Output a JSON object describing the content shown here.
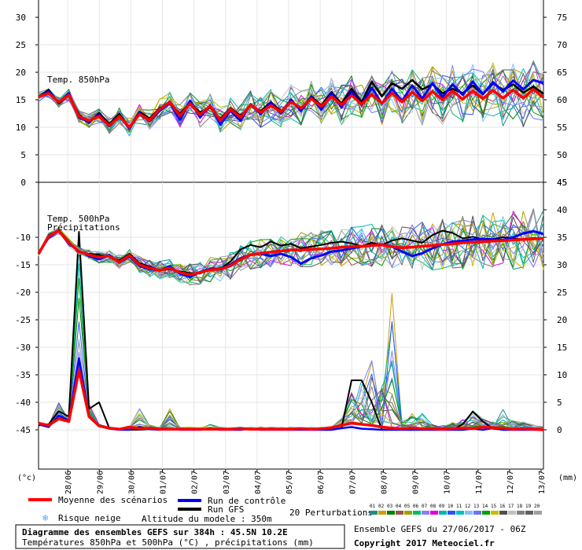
{
  "chart_data": {
    "type": "line",
    "dates": [
      "28/06",
      "29/06",
      "30/06",
      "01/07",
      "02/07",
      "03/07",
      "04/07",
      "05/07",
      "06/07",
      "07/07",
      "08/07",
      "09/07",
      "10/07",
      "11/07",
      "12/07",
      "13/07"
    ],
    "top_panel": {
      "label": "Temp. 850hPa",
      "y_left_ticks": [
        "30",
        "25",
        "20",
        "15",
        "10",
        "5",
        "0"
      ],
      "y_right_ticks": [
        "75",
        "70",
        "65",
        "60",
        "55",
        "50",
        "45"
      ],
      "series": {
        "mean": [
          15.5,
          16.2,
          14.6,
          15.9,
          12.0,
          11.2,
          12.0,
          10.3,
          12.0,
          10.0,
          12.4,
          11.3,
          13.3,
          14.6,
          12.1,
          14.3,
          12.3,
          13.9,
          11.2,
          13.3,
          11.8,
          14.1,
          12.7,
          14.0,
          12.8,
          14.6,
          13.5,
          15.2,
          13.8,
          15.6,
          14.1,
          15.8,
          14.2,
          16.0,
          14.4,
          16.2,
          14.6,
          16.4,
          14.8,
          16.5,
          15.0,
          16.6,
          15.1,
          16.6,
          15.2,
          16.7,
          15.3,
          16.8,
          15.3,
          16.9,
          15.4
        ],
        "control": [
          15.5,
          16.5,
          14.5,
          16.2,
          11.8,
          11.0,
          12.3,
          10.2,
          12.0,
          9.8,
          12.6,
          11.1,
          13.0,
          14.5,
          11.4,
          14.8,
          11.8,
          14.0,
          10.5,
          13.0,
          11.2,
          14.2,
          12.4,
          14.5,
          12.5,
          15.0,
          13.0,
          15.5,
          13.2,
          16.2,
          13.6,
          16.5,
          14.0,
          17.2,
          14.3,
          17.0,
          14.8,
          17.6,
          15.2,
          18.0,
          15.5,
          17.8,
          15.9,
          18.3,
          16.0,
          18.2,
          16.5,
          18.5,
          16.9,
          18.6,
          18.0
        ],
        "gfs": [
          15.5,
          16.8,
          14.3,
          16.0,
          12.3,
          10.8,
          12.6,
          10.6,
          12.4,
          9.9,
          12.8,
          11.6,
          13.5,
          14.3,
          12.5,
          14.4,
          12.7,
          13.6,
          11.5,
          13.5,
          12.1,
          14.0,
          12.9,
          14.6,
          12.9,
          14.8,
          13.2,
          15.6,
          14.0,
          16.4,
          14.3,
          17.0,
          14.6,
          18.3,
          15.6,
          18.0,
          17.0,
          18.6,
          16.9,
          17.8,
          16.2,
          17.0,
          16.2,
          17.6,
          16.0,
          18.0,
          16.8,
          17.8,
          16.3,
          17.4,
          16.1
        ]
      }
    },
    "bottom_panel": {
      "labels": [
        "Temp. 500hPa",
        "Précipitations"
      ],
      "y_left_ticks": [
        "-10",
        "-15",
        "-20",
        "-25",
        "-30",
        "-35",
        "-40",
        "-45"
      ],
      "y_right_ticks": [
        "45",
        "40",
        "35",
        "30",
        "25",
        "20",
        "15",
        "10",
        "5",
        "0"
      ],
      "temp500": {
        "mean": [
          -13.0,
          -9.8,
          -8.8,
          -11.0,
          -12.6,
          -13.2,
          -13.6,
          -13.4,
          -14.5,
          -13.3,
          -15.0,
          -15.6,
          -16.0,
          -15.6,
          -16.4,
          -16.8,
          -16.4,
          -15.9,
          -15.8,
          -15.2,
          -14.0,
          -13.2,
          -12.9,
          -12.7,
          -12.5,
          -12.3,
          -12.3,
          -12.2,
          -12.1,
          -12.0,
          -11.8,
          -11.7,
          -11.6,
          -11.5,
          -11.4,
          -11.7,
          -11.9,
          -11.8,
          -11.6,
          -11.5,
          -11.3,
          -11.2,
          -11.0,
          -10.9,
          -10.8,
          -10.7,
          -10.6,
          -10.5,
          -10.4,
          -10.3,
          -10.2
        ],
        "control": [
          -13.0,
          -10.0,
          -8.8,
          -11.2,
          -12.5,
          -13.4,
          -14.0,
          -13.2,
          -14.6,
          -13.5,
          -15.2,
          -15.8,
          -16.0,
          -15.3,
          -16.6,
          -17.2,
          -16.3,
          -15.8,
          -15.7,
          -15.0,
          -13.8,
          -13.2,
          -13.0,
          -13.4,
          -13.0,
          -13.6,
          -14.8,
          -13.8,
          -13.3,
          -12.6,
          -12.4,
          -12.0,
          -11.7,
          -11.4,
          -11.3,
          -11.7,
          -12.6,
          -13.4,
          -12.9,
          -12.0,
          -11.3,
          -10.8,
          -10.6,
          -10.4,
          -10.3,
          -10.4,
          -10.5,
          -10.0,
          -9.3,
          -8.9,
          -9.4
        ],
        "gfs": [
          -13.0,
          -9.6,
          -8.8,
          -10.8,
          -12.7,
          -13.0,
          -13.2,
          -13.5,
          -14.2,
          -13.0,
          -14.7,
          -15.3,
          -16.1,
          -15.8,
          -16.2,
          -16.5,
          -16.6,
          -15.6,
          -15.7,
          -14.4,
          -12.2,
          -11.4,
          -11.8,
          -10.8,
          -11.5,
          -11.2,
          -12.0,
          -11.7,
          -11.4,
          -11.0,
          -10.8,
          -11.1,
          -11.6,
          -11.0,
          -11.4,
          -10.6,
          -10.2,
          -10.6,
          -11.0,
          -9.6,
          -8.8,
          -9.2,
          -10.2,
          -9.9,
          -10.4,
          -10.3,
          -10.0,
          -10.2,
          -10.4,
          -10.1,
          -10.2
        ]
      },
      "precip_mm": {
        "mean": [
          1.2,
          0.8,
          2.0,
          1.5,
          10.8,
          2.4,
          0.7,
          0.3,
          0.1,
          0.5,
          0.2,
          0.3,
          0.1,
          0.1,
          0.1,
          0.1,
          0.1,
          0.1,
          0.1,
          0.1,
          0.2,
          0.1,
          0.1,
          0.1,
          0.1,
          0.1,
          0.2,
          0.1,
          0.2,
          0.4,
          0.8,
          1.2,
          1.0,
          0.8,
          0.5,
          0.3,
          0.2,
          0.3,
          0.2,
          0.2,
          0.1,
          0.2,
          0.3,
          0.2,
          0.5,
          0.4,
          0.3,
          0.1,
          0.2,
          0.1,
          0.0
        ],
        "control": [
          1.0,
          0.5,
          2.6,
          1.7,
          13.0,
          2.4,
          0.8,
          0.2,
          0.0,
          0.0,
          0.5,
          0.1,
          0.0,
          0.2,
          0.0,
          0.0,
          0.0,
          0.1,
          0.0,
          0.0,
          0.0,
          0.2,
          0.0,
          0.0,
          0.0,
          0.0,
          0.0,
          0.0,
          0.0,
          0.0,
          0.3,
          0.5,
          0.2,
          0.1,
          0.0,
          0.0,
          0.0,
          0.0,
          0.0,
          0.0,
          0.0,
          0.0,
          0.0,
          0.2,
          0.0,
          0.3,
          0.0,
          0.0,
          0.0,
          0.0,
          0.0
        ],
        "gfs": [
          0.8,
          1.0,
          3.4,
          2.4,
          36.0,
          3.8,
          5.0,
          0.3,
          0.1,
          0.0,
          0.0,
          0.1,
          0.2,
          0.0,
          0.1,
          0.0,
          0.1,
          0.3,
          0.0,
          0.0,
          0.1,
          0.1,
          0.2,
          0.0,
          0.0,
          0.1,
          0.0,
          0.0,
          0.0,
          0.0,
          0.3,
          9.0,
          9.0,
          5.0,
          0.0,
          0.0,
          0.0,
          0.0,
          0.0,
          0.0,
          0.0,
          0.0,
          1.0,
          3.3,
          1.5,
          0.2,
          0.0,
          0.0,
          0.0,
          0.0,
          0.0
        ],
        "peak_max": [
          1.2,
          0.8,
          5.0,
          2.0,
          35.0,
          5.0,
          1.0,
          0.5,
          0.3,
          0.5,
          4.0,
          1.0,
          0.5,
          4.0,
          0.5,
          0.5,
          0.5,
          1.0,
          0.5,
          0.5,
          0.5,
          0.5,
          0.5,
          0.5,
          0.5,
          0.5,
          0.5,
          0.5,
          0.5,
          0.5,
          2.0,
          7.0,
          10.0,
          13.0,
          8.0,
          26.0,
          2.0,
          3.0,
          3.0,
          1.0,
          1.0,
          1.5,
          2.0,
          3.5,
          2.0,
          1.5,
          4.0,
          2.0,
          1.5,
          1.0,
          0.5
        ]
      }
    },
    "axis_units": {
      "left": "(°c)",
      "right": "(mm)"
    }
  },
  "legend": {
    "mean_label": "Moyenne des scénarios",
    "control_label": "Run de contrôle",
    "gfs_label": "Run GFS",
    "snow_label": "Risque neige",
    "altitude_label": "Altitude du modele : 350m",
    "perturbations_label": "20 Perturbations",
    "perturbation_ids": [
      "01",
      "02",
      "03",
      "04",
      "05",
      "06",
      "07",
      "08",
      "09",
      "10",
      "11",
      "12",
      "13",
      "14",
      "15",
      "16",
      "17",
      "18",
      "19",
      "20"
    ],
    "colors": {
      "mean": "#ff0000",
      "control": "#0000ff",
      "gfs": "#000000",
      "snow": "#4fa8f0",
      "perturbations": [
        "#1e8c8c",
        "#c8a000",
        "#008000",
        "#a05050",
        "#a0a000",
        "#00c060",
        "#8080ff",
        "#e000e0",
        "#00b4b4",
        "#3050ff",
        "#00c0c0",
        "#80c0ff",
        "#7070ff",
        "#00a000",
        "#c0c000",
        "#505050",
        "#c0c0c0",
        "#808080",
        "#606060",
        "#a0a0a0"
      ]
    }
  },
  "footer": {
    "title": "Diagramme des ensembles GEFS sur 384h : 45.5N 10.2E",
    "subtitle": "Températures 850hPa et 500hPa (°C) , précipitations (mm)",
    "run_info": "Ensemble GEFS du 27/06/2017 - 06Z",
    "copyright": "Copyright 2017 Meteociel.fr"
  }
}
